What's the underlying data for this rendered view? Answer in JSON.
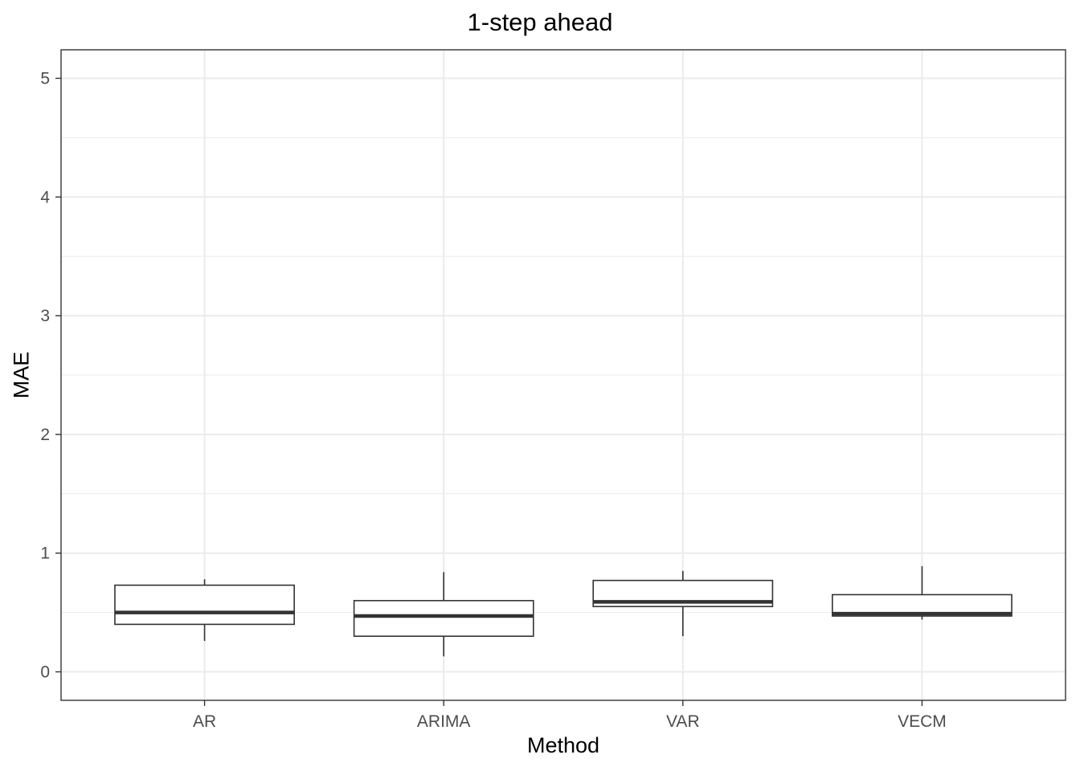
{
  "chart_data": {
    "type": "boxplot",
    "title": "1-step ahead",
    "xlabel": "Method",
    "ylabel": "MAE",
    "ylim": [
      -0.24,
      5.24
    ],
    "yticks": [
      0,
      1,
      2,
      3,
      4,
      5
    ],
    "categories": [
      "AR",
      "ARIMA",
      "VAR",
      "VECM"
    ],
    "boxes": [
      {
        "category": "AR",
        "whisker_low": 0.26,
        "q1": 0.4,
        "median": 0.5,
        "q3": 0.73,
        "whisker_high": 0.78
      },
      {
        "category": "ARIMA",
        "whisker_low": 0.13,
        "q1": 0.3,
        "median": 0.47,
        "q3": 0.6,
        "whisker_high": 0.84
      },
      {
        "category": "VAR",
        "whisker_low": 0.3,
        "q1": 0.55,
        "median": 0.59,
        "q3": 0.77,
        "whisker_high": 0.85
      },
      {
        "category": "VECM",
        "whisker_low": 0.44,
        "q1": 0.47,
        "median": 0.49,
        "q3": 0.65,
        "whisker_high": 0.89
      }
    ],
    "grid": true,
    "colors": {
      "box_fill": "#ffffff",
      "box_stroke": "#333333",
      "grid": "#ebebeb",
      "panel_border": "#333333"
    }
  }
}
